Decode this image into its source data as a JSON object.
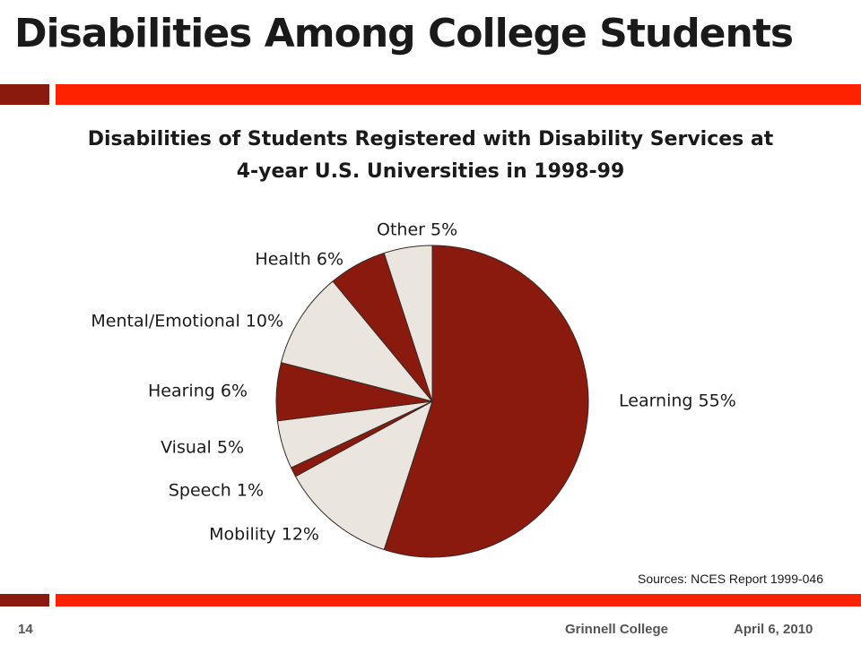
{
  "slide": {
    "title": "Disabilities Among College Students",
    "source": "Sources: NCES Report 1999-046",
    "page_number": "14",
    "organization": "Grinnell College",
    "date": "April 6, 2010"
  },
  "colors": {
    "accent_dark": "#8b1a0e",
    "accent_bright": "#ff2200",
    "slice_dark": "#8b1a0e",
    "slice_light": "#ebe5df",
    "slice_stroke": "#3a2a25"
  },
  "chart_data": {
    "type": "pie",
    "title_lines": [
      "Disabilities of Students Registered with Disability Services at",
      "4-year U.S. Universities in 1998-99"
    ],
    "slices": [
      {
        "label": "Learning",
        "value": 55,
        "display": "Learning 55%",
        "color": "#8b1a0e"
      },
      {
        "label": "Mobility",
        "value": 12,
        "display": "Mobility 12%",
        "color": "#ebe5df"
      },
      {
        "label": "Speech",
        "value": 1,
        "display": "Speech 1%",
        "color": "#8b1a0e"
      },
      {
        "label": "Visual",
        "value": 5,
        "display": "Visual 5%",
        "color": "#ebe5df"
      },
      {
        "label": "Hearing",
        "value": 6,
        "display": "Hearing 6%",
        "color": "#8b1a0e"
      },
      {
        "label": "Mental/Emotional",
        "value": 10,
        "display": "Mental/Emotional 10%",
        "color": "#ebe5df"
      },
      {
        "label": "Health",
        "value": 6,
        "display": "Health 6%",
        "color": "#8b1a0e"
      },
      {
        "label": "Other",
        "value": 5,
        "display": "Other 5%",
        "color": "#ebe5df"
      }
    ],
    "start": "12 o'clock",
    "direction": "clockwise",
    "legend": "none"
  }
}
